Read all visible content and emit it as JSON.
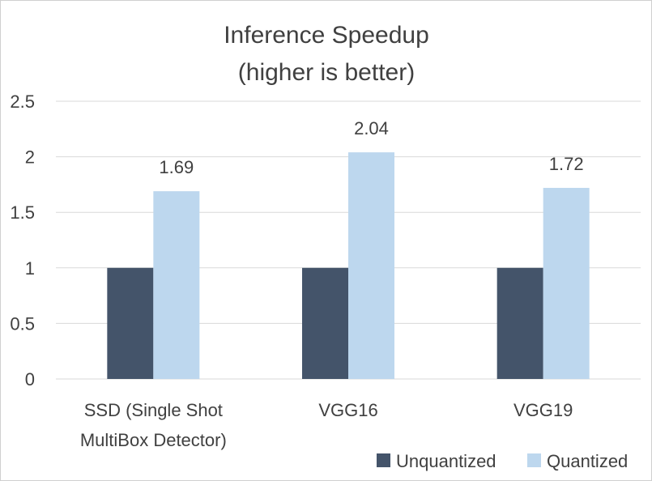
{
  "chart_data": {
    "type": "bar",
    "title": [
      "Inference Speedup",
      "(higher is better)"
    ],
    "categories": [
      [
        "SSD (Single Shot",
        "MultiBox Detector)"
      ],
      [
        "VGG16"
      ],
      [
        "VGG19"
      ]
    ],
    "series": [
      {
        "name": "Unquantized",
        "values": [
          1,
          1,
          1
        ],
        "color": "#44546a",
        "labels": [
          "",
          "",
          ""
        ]
      },
      {
        "name": "Quantized",
        "values": [
          1.69,
          2.04,
          1.72
        ],
        "color": "#bdd7ee",
        "labels": [
          "1.69",
          "2.04",
          "1.72"
        ]
      }
    ],
    "ylim": [
      0,
      2.5
    ],
    "yticks": [
      "0",
      "0.5",
      "1",
      "1.5",
      "2",
      "2.5"
    ],
    "ytick_values": [
      0,
      0.5,
      1,
      1.5,
      2,
      2.5
    ],
    "grid": true,
    "legend_position": "bottom-right"
  }
}
